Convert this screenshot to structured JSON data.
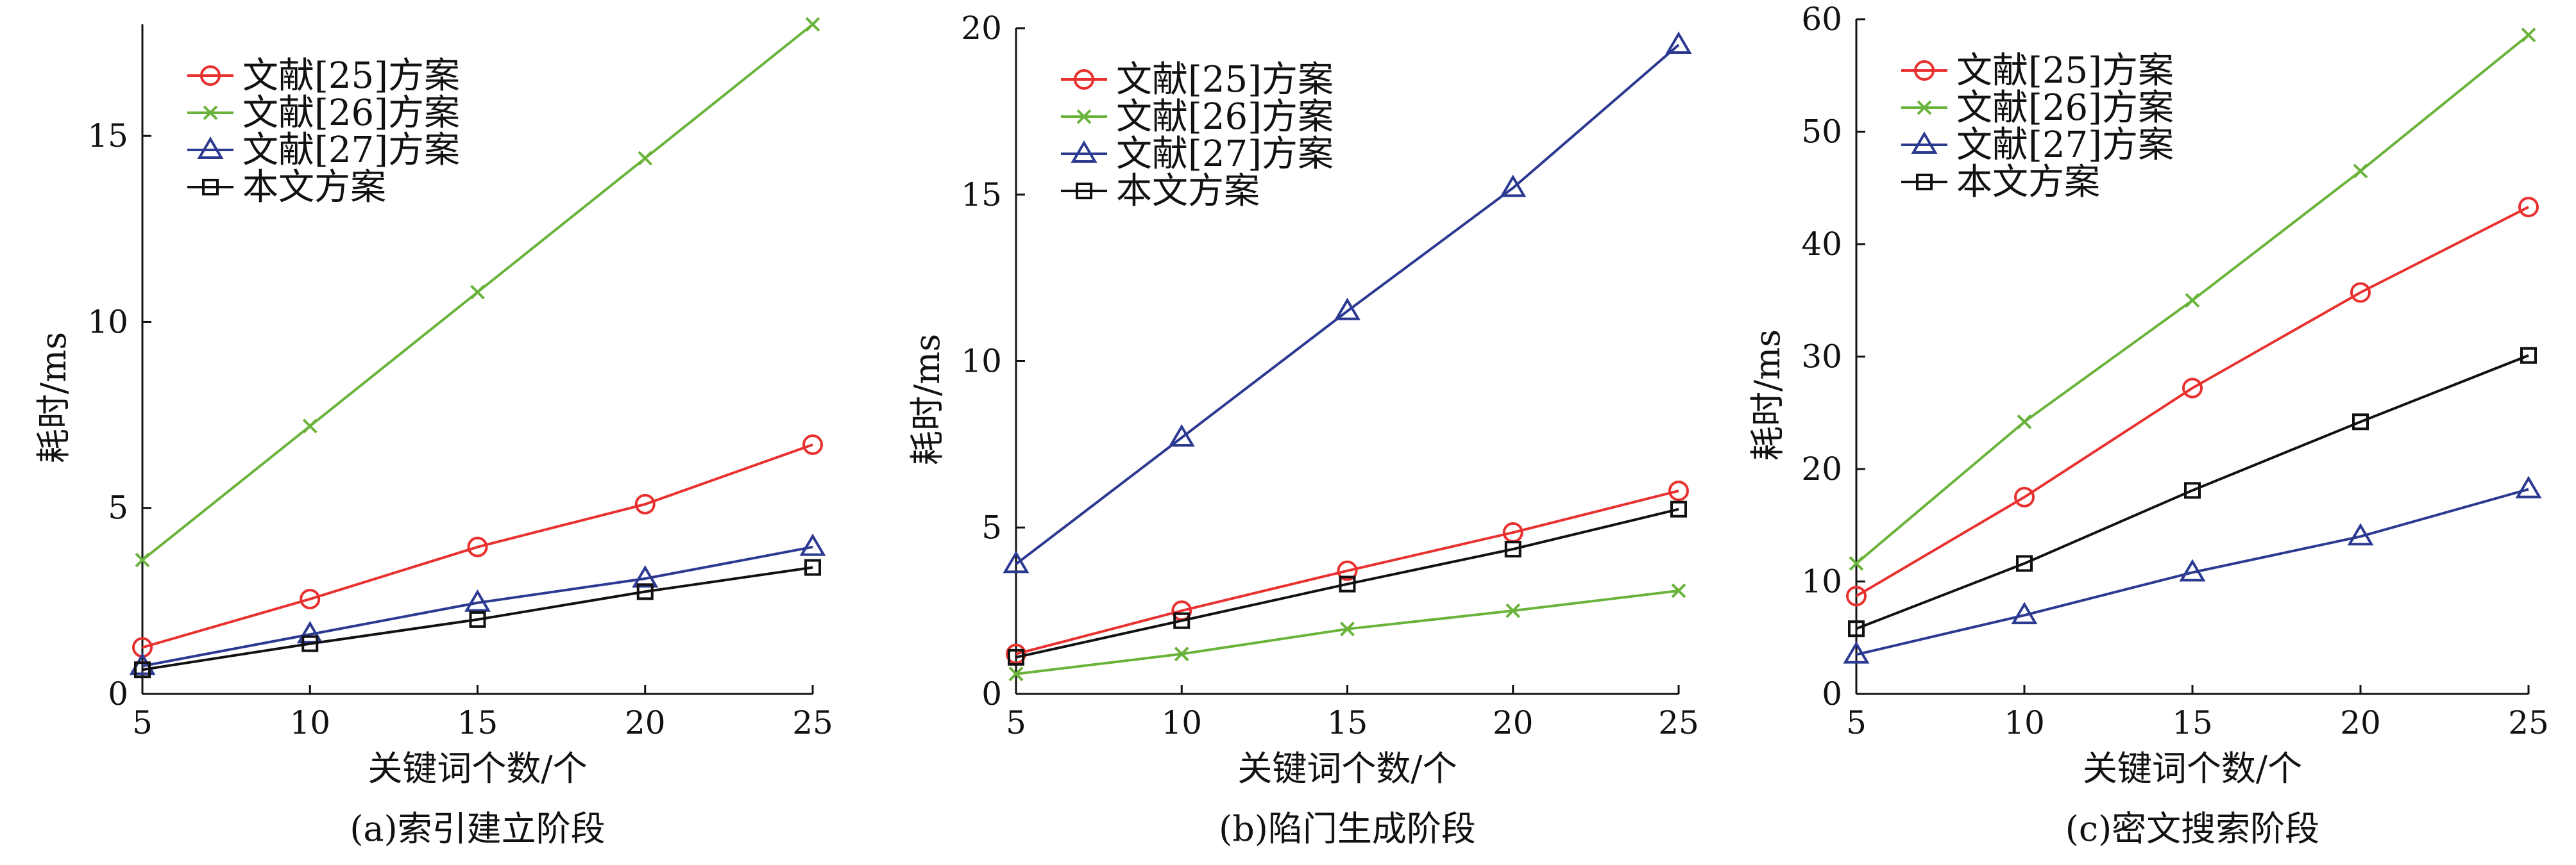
{
  "legend_labels": [
    "文献[25]方案",
    "文献[26]方案",
    "文献[27]方案",
    "本文方案"
  ],
  "series_colors": [
    "#e8312f",
    "#6ab33a",
    "#2b3990",
    "#111111"
  ],
  "series_markers": [
    "circle",
    "x",
    "triangle",
    "square"
  ],
  "chart_data": [
    {
      "type": "line",
      "caption": "(a)索引建立阶段",
      "xlabel": "关键词个数/个",
      "ylabel": "耗时/ms",
      "x": [
        5,
        10,
        15,
        20,
        25
      ],
      "xlim": [
        5,
        25
      ],
      "ylim": [
        0,
        18
      ],
      "xticks": [
        5,
        10,
        15,
        20,
        25
      ],
      "yticks": [
        0,
        5,
        10,
        15
      ],
      "legend_position": "top-left",
      "grid": false,
      "series": [
        {
          "name": "文献[25]方案",
          "values": [
            1.25,
            2.55,
            3.95,
            5.1,
            6.7
          ]
        },
        {
          "name": "文献[26]方案",
          "values": [
            3.6,
            7.2,
            10.8,
            14.4,
            18.0
          ]
        },
        {
          "name": "文献[27]方案",
          "values": [
            0.75,
            1.6,
            2.45,
            3.1,
            3.95
          ]
        },
        {
          "name": "本文方案",
          "values": [
            0.65,
            1.35,
            2.0,
            2.75,
            3.4
          ]
        }
      ]
    },
    {
      "type": "line",
      "caption": "(b)陷门生成阶段",
      "xlabel": "关键词个数/个",
      "ylabel": "耗时/ms",
      "x": [
        5,
        10,
        15,
        20,
        25
      ],
      "xlim": [
        5,
        25
      ],
      "ylim": [
        0,
        20
      ],
      "xticks": [
        5,
        10,
        15,
        20,
        25
      ],
      "yticks": [
        0,
        5,
        10,
        15,
        20
      ],
      "legend_position": "top-left",
      "grid": false,
      "series": [
        {
          "name": "文献[25]方案",
          "values": [
            1.2,
            2.5,
            3.7,
            4.85,
            6.1
          ]
        },
        {
          "name": "文献[26]方案",
          "values": [
            0.6,
            1.2,
            1.95,
            2.5,
            3.1
          ]
        },
        {
          "name": "文献[27]方案",
          "values": [
            3.9,
            7.7,
            11.5,
            15.2,
            19.5
          ]
        },
        {
          "name": "本文方案",
          "values": [
            1.1,
            2.2,
            3.3,
            4.35,
            5.55
          ]
        }
      ]
    },
    {
      "type": "line",
      "caption": "(c)密文搜索阶段",
      "xlabel": "关键词个数/个",
      "ylabel": "耗时/ms",
      "x": [
        5,
        10,
        15,
        20,
        25
      ],
      "xlim": [
        5,
        25
      ],
      "ylim": [
        0,
        60
      ],
      "xticks": [
        5,
        10,
        15,
        20,
        25
      ],
      "yticks": [
        0,
        10,
        20,
        30,
        40,
        50,
        60
      ],
      "legend_position": "top-left",
      "grid": false,
      "series": [
        {
          "name": "文献[25]方案",
          "values": [
            8.7,
            17.5,
            27.2,
            35.7,
            43.3
          ]
        },
        {
          "name": "文献[26]方案",
          "values": [
            11.6,
            24.2,
            35.0,
            46.5,
            58.6
          ]
        },
        {
          "name": "文献[27]方案",
          "values": [
            3.5,
            7.0,
            10.8,
            14.0,
            18.2
          ]
        },
        {
          "name": "本文方案",
          "values": [
            5.8,
            11.6,
            18.1,
            24.2,
            30.1
          ]
        }
      ]
    }
  ]
}
